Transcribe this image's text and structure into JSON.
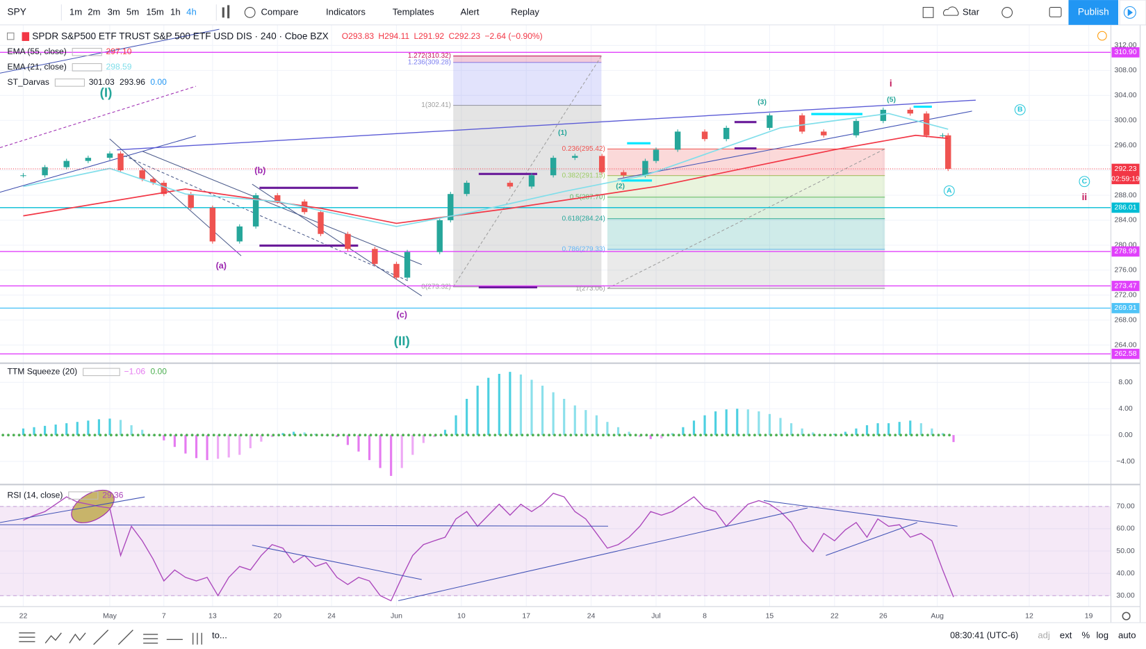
{
  "toolbar": {
    "symbol": "SPY",
    "intervals": [
      "1m",
      "2m",
      "3m",
      "5m",
      "15m",
      "1h",
      "4h"
    ],
    "active_interval_index": 6,
    "buttons": [
      "Compare",
      "Indicators",
      "Templates",
      "Alert",
      "Replay"
    ],
    "star": "Star",
    "publish": "Publish"
  },
  "status_bar": {
    "range": "to...",
    "clock": "08:30:41 (UTC-6)",
    "options": [
      "adj",
      "ext",
      "%",
      "log",
      "auto"
    ]
  },
  "chart_data": [
    {
      "type": "candlestick",
      "title": "SPDR S&P500 ETF TRUST S&P 500 ETF USD DIS · 240 · Cboe BZX",
      "ohlc_labels": [
        "O293.83",
        "H294.11",
        "L291.92",
        "C292.23",
        "−2.64 (−0.90%)"
      ],
      "x": [
        0,
        4,
        8,
        12,
        16,
        18,
        22,
        24,
        26,
        31,
        35,
        40,
        43,
        47,
        52,
        55,
        60,
        65,
        69,
        71,
        77,
        79,
        82,
        90,
        94,
        98,
        102,
        107,
        111,
        115,
        117,
        121,
        126,
        130,
        138,
        144,
        148,
        154,
        159,
        164,
        167,
        170,
        171
      ],
      "close": [
        291.2,
        292.5,
        293.5,
        294,
        294.7,
        292,
        290.6,
        290,
        288.2,
        286,
        280.6,
        283,
        288,
        287,
        285.3,
        281.8,
        279.4,
        277,
        274.8,
        278.9,
        284,
        288.2,
        290,
        289.4,
        291.2,
        294,
        294.3,
        291.7,
        291.2,
        293.5,
        295.3,
        298.2,
        297,
        298.8,
        300.8,
        298.2,
        297.6,
        299.9,
        301.7,
        301.1,
        297.6,
        297.6,
        292.23
      ],
      "up_color": "#26a69a",
      "down_color": "#ef5350",
      "ylim": [
        261.2,
        315.3
      ],
      "yticks": [
        {
          "value": 264,
          "label": "264.00"
        },
        {
          "value": 268,
          "label": "268.00"
        },
        {
          "value": 272,
          "label": "272.00"
        },
        {
          "value": 276,
          "label": "276.00"
        },
        {
          "value": 280,
          "label": "280.00"
        },
        {
          "value": 284,
          "label": "284.00"
        },
        {
          "value": 288,
          "label": "288.00"
        },
        {
          "value": 292,
          "label": "292.00"
        },
        {
          "value": 296,
          "label": "296.00"
        },
        {
          "value": 300,
          "label": "300.00"
        },
        {
          "value": 304,
          "label": "304.00"
        },
        {
          "value": 308,
          "label": "308.00"
        },
        {
          "value": 312,
          "label": "312.00"
        }
      ],
      "indicators": [
        {
          "name": "EMA (55, close)",
          "value_label": "297.10",
          "color": "#f23645",
          "x": [
            0,
            30,
            55,
            69,
            90,
            117,
            150,
            165,
            171
          ],
          "values": [
            284.7,
            289,
            285.9,
            283.5,
            285.9,
            289.4,
            295.3,
            297.6,
            297.1
          ]
        },
        {
          "name": "EMA (21, close)",
          "value_label": "298.59",
          "color": "#80deea",
          "x": [
            0,
            16,
            30,
            47,
            69,
            83,
            100,
            115,
            140,
            160,
            171
          ],
          "values": [
            289.4,
            292.3,
            288.2,
            287,
            283,
            285.3,
            288.6,
            291.2,
            298.8,
            301.1,
            298.59
          ]
        }
      ],
      "darvas": {
        "name": "ST_Darvas",
        "value_labels": [
          "301.03",
          "293.96",
          "0.00"
        ]
      },
      "levels": [
        {
          "value": 310.9,
          "label": "310.90",
          "color": "#e040fb"
        },
        {
          "value": 286.01,
          "label": "286.01",
          "color": "#00bcd4"
        },
        {
          "value": 278.99,
          "label": "278.99",
          "color": "#e040fb"
        },
        {
          "value": 273.47,
          "label": "273.47",
          "color": "#e040fb"
        },
        {
          "value": 269.91,
          "label": "269.91",
          "color": "#4fc3f7"
        },
        {
          "value": 262.58,
          "label": "262.58",
          "color": "#e040fb"
        }
      ],
      "last_price": {
        "value": 292.23,
        "label": "292.23",
        "countdown": "02:59:19",
        "color": "#f23645"
      },
      "fibs": [
        {
          "x": [
            79.5,
            106.9
          ],
          "levels": [
            {
              "value": 273.32,
              "label": "0(273.32)",
              "color": "#9e9e9e"
            },
            {
              "value": 302.41,
              "label": "1(302.41)",
              "color": "#9e9e9e"
            },
            {
              "value": 309.28,
              "label": "1.236(309.28)",
              "color": "#7c7ff0"
            },
            {
              "value": 310.32,
              "label": "1.272(310.32)",
              "color": "#c2185b"
            }
          ]
        },
        {
          "x": [
            108,
            159.3
          ],
          "levels": [
            {
              "value": 273.06,
              "label": "1(273.06)",
              "color": "#9e9e9e"
            },
            {
              "value": 279.33,
              "label": "0.786(279.33)",
              "color": "#64b5f6"
            },
            {
              "value": 284.24,
              "label": "0.618(284.24)",
              "color": "#26a69a"
            },
            {
              "value": 287.7,
              "label": "0.5(287.70)",
              "color": "#66bb6a"
            },
            {
              "value": 291.15,
              "label": "0.382(291.15)",
              "color": "#9ccc65"
            },
            {
              "value": 295.42,
              "label": "0.236(295.42)",
              "color": "#ef5350"
            }
          ]
        }
      ],
      "annotations": [
        {
          "text": "(I)",
          "x": 15.3,
          "y": 304.3,
          "color": "#26a69a",
          "size": 18
        },
        {
          "text": "(II)",
          "x": 70,
          "y": 264.5,
          "color": "#26a69a",
          "size": 18
        },
        {
          "text": "(a)",
          "x": 36.6,
          "y": 276.6,
          "color": "#9c27b0",
          "size": 12
        },
        {
          "text": "(b)",
          "x": 43.8,
          "y": 291.9,
          "color": "#9c27b0",
          "size": 12
        },
        {
          "text": "(c)",
          "x": 70,
          "y": 268.8,
          "color": "#9c27b0",
          "size": 12
        },
        {
          "text": "i",
          "x": 160.4,
          "y": 305.8,
          "color": "#c2185b",
          "size": 13
        },
        {
          "text": "ii",
          "x": 196.2,
          "y": 287.6,
          "color": "#c2185b",
          "size": 13
        },
        {
          "text": "(1)",
          "x": 99.7,
          "y": 298,
          "color": "#26a69a",
          "size": 10
        },
        {
          "text": "(2)",
          "x": 110.4,
          "y": 289.4,
          "color": "#26a69a",
          "size": 10
        },
        {
          "text": "(3)",
          "x": 136.6,
          "y": 302.9,
          "color": "#26a69a",
          "size": 10
        },
        {
          "text": "(5)",
          "x": 160.5,
          "y": 303.3,
          "color": "#26a69a",
          "size": 10
        },
        {
          "text": "A",
          "x": 171.2,
          "y": 288.7,
          "color": "#26c6da",
          "size": 10,
          "circled": true
        },
        {
          "text": "B",
          "x": 184.3,
          "y": 301.7,
          "color": "#26c6da",
          "size": 10,
          "circled": true
        },
        {
          "text": "C",
          "x": 196.2,
          "y": 290.2,
          "color": "#26c6da",
          "size": 10,
          "circled": true
        }
      ]
    },
    {
      "type": "bar",
      "title": "TTM Squeeze (20)",
      "legend_values": [
        "−1.06",
        "0.00"
      ],
      "color_positive": "#4dd0e1",
      "color_negative": "#e57bf0",
      "dot_color": "#4caf50",
      "x": [
        0,
        2,
        4,
        6,
        8,
        10,
        12,
        14,
        16,
        18,
        20,
        22,
        24,
        26,
        28,
        30,
        32,
        34,
        36,
        38,
        40,
        42,
        44,
        46,
        48,
        50,
        52,
        54,
        56,
        58,
        60,
        62,
        64,
        66,
        68,
        70,
        72,
        74,
        76,
        78,
        80,
        82,
        84,
        86,
        88,
        90,
        92,
        94,
        96,
        98,
        100,
        102,
        104,
        106,
        108,
        110,
        112,
        114,
        116,
        118,
        120,
        122,
        124,
        126,
        128,
        130,
        132,
        134,
        136,
        138,
        140,
        142,
        144,
        146,
        148,
        150,
        152,
        154,
        156,
        158,
        160,
        162,
        164,
        166,
        168,
        170,
        172
      ],
      "values": [
        1,
        1.2,
        1.4,
        1.6,
        1.8,
        2,
        2.2,
        2.4,
        2.5,
        2.3,
        1.5,
        0.8,
        0,
        -0.8,
        -1.8,
        -2.8,
        -3.5,
        -3.8,
        -3.6,
        -3.4,
        -3,
        -2,
        -1,
        -0.3,
        0.3,
        0.5,
        0.4,
        0.2,
        0,
        -0.3,
        -1.5,
        -2.5,
        -3.8,
        -5,
        -6.2,
        -5,
        -3,
        -1.2,
        -0.3,
        0.8,
        3,
        5.5,
        7.5,
        8.7,
        9.3,
        9.6,
        9.2,
        8.4,
        7.5,
        6.5,
        5.5,
        4.5,
        3.8,
        3,
        2,
        1.2,
        0.5,
        -0.3,
        -0.6,
        -0.5,
        0.3,
        1.2,
        2.2,
        3,
        3.6,
        3.9,
        4,
        3.9,
        3.6,
        3.2,
        2.6,
        1.8,
        1,
        0.4,
        0.1,
        0.2,
        0.5,
        1,
        1.5,
        1.8,
        1.8,
        2,
        2.2,
        1.8,
        1,
        0.3,
        -1.06
      ],
      "ylim": [
        -7.4,
        10.8
      ],
      "yticks": [
        {
          "value": -4,
          "label": "−4.00"
        },
        {
          "value": 0,
          "label": "0.00"
        },
        {
          "value": 4,
          "label": "4.00"
        },
        {
          "value": 8,
          "label": "8.00"
        }
      ]
    },
    {
      "type": "line",
      "title": "RSI (14, close)",
      "legend_value": "29.36",
      "color": "#ab47bc",
      "band": [
        30,
        70
      ],
      "x": [
        0,
        2,
        4,
        6,
        8,
        10,
        12,
        14,
        16,
        18,
        20,
        22,
        24,
        26,
        28,
        30,
        32,
        34,
        36,
        38,
        40,
        42,
        44,
        46,
        48,
        50,
        52,
        54,
        56,
        58,
        60,
        62,
        64,
        66,
        68,
        70,
        72,
        74,
        76,
        78,
        80,
        82,
        84,
        86,
        88,
        90,
        92,
        94,
        96,
        98,
        100,
        102,
        104,
        106,
        108,
        110,
        112,
        114,
        116,
        118,
        120,
        122,
        124,
        126,
        128,
        130,
        132,
        134,
        136,
        138,
        140,
        142,
        144,
        146,
        148,
        150,
        152,
        154,
        156,
        158,
        160,
        162,
        164,
        166,
        168,
        170,
        172
      ],
      "values": [
        63.8,
        66,
        67.7,
        71,
        74.3,
        72,
        71,
        70,
        69.3,
        48,
        61.1,
        54.6,
        46.4,
        36.6,
        41.5,
        38.2,
        36.6,
        38.2,
        30,
        38.2,
        43.1,
        41.5,
        48,
        52.9,
        51.3,
        44.8,
        48,
        43.1,
        44.8,
        38.2,
        35,
        38.2,
        36.6,
        30,
        27.7,
        38.2,
        48,
        52.9,
        54.6,
        56.2,
        64.4,
        67.7,
        61.1,
        66.1,
        71,
        66.1,
        71,
        67.7,
        71,
        75.9,
        74.3,
        67.7,
        64.4,
        57.9,
        51.3,
        52.9,
        56.2,
        61.1,
        67.7,
        66.1,
        67.7,
        71,
        74.3,
        69.3,
        67.7,
        61.1,
        66.1,
        71,
        72.6,
        71,
        67.7,
        62.8,
        54.6,
        49.7,
        57.9,
        54.6,
        59.5,
        62.8,
        56.2,
        64.4,
        61.1,
        61.8,
        56.2,
        57.9,
        54.6,
        41.5,
        29.36
      ],
      "ylim": [
        25.1,
        79.5
      ],
      "yticks": [
        {
          "value": 30,
          "label": "30.00"
        },
        {
          "value": 40,
          "label": "40.00"
        },
        {
          "value": 50,
          "label": "50.00"
        },
        {
          "value": 60,
          "label": "60.00"
        },
        {
          "value": 70,
          "label": "70.00"
        }
      ],
      "xlim": [
        -4.3,
        201.1
      ],
      "xticks": [
        {
          "value": 0,
          "label": "22"
        },
        {
          "value": 16,
          "label": "May"
        },
        {
          "value": 26,
          "label": "7"
        },
        {
          "value": 35,
          "label": "13"
        },
        {
          "value": 47,
          "label": "20"
        },
        {
          "value": 57,
          "label": "24"
        },
        {
          "value": 69,
          "label": "Jun"
        },
        {
          "value": 81,
          "label": "10"
        },
        {
          "value": 93,
          "label": "17"
        },
        {
          "value": 105,
          "label": "24"
        },
        {
          "value": 117,
          "label": "Jul"
        },
        {
          "value": 126,
          "label": "8"
        },
        {
          "value": 138,
          "label": "15"
        },
        {
          "value": 150,
          "label": "22"
        },
        {
          "value": 159,
          "label": "26"
        },
        {
          "value": 169,
          "label": "Aug"
        },
        {
          "value": 186,
          "label": "12"
        },
        {
          "value": 197,
          "label": "19"
        }
      ]
    }
  ]
}
